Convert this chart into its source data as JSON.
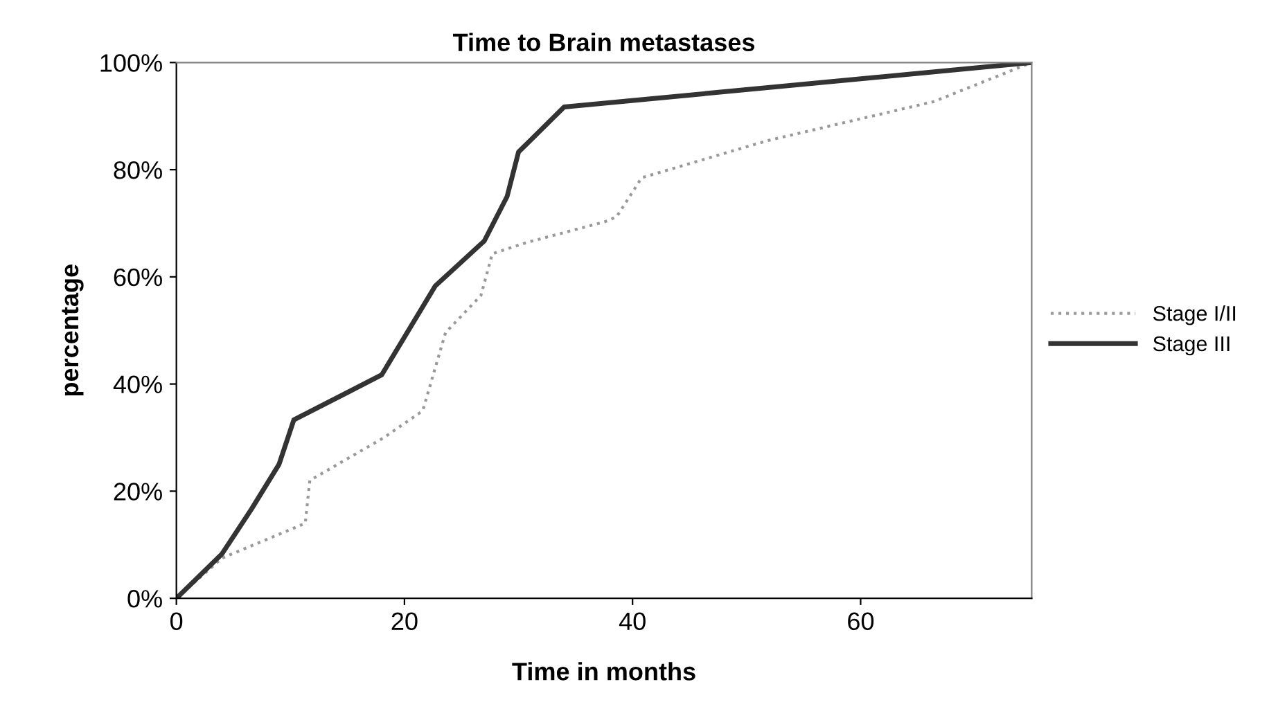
{
  "chart_data": {
    "type": "line",
    "title": "Time to Brain metastases",
    "xlabel": "Time in months",
    "ylabel": "percentage",
    "xlim": [
      0,
      75
    ],
    "xticks": [
      0,
      20,
      40,
      60
    ],
    "ylim": [
      0,
      100
    ],
    "yticks": [
      {
        "value": 0,
        "label": "0%"
      },
      {
        "value": 20,
        "label": "20%"
      },
      {
        "value": 40,
        "label": "40%"
      },
      {
        "value": 60,
        "label": "60%"
      },
      {
        "value": 80,
        "label": "80%"
      },
      {
        "value": 100,
        "label": "100%"
      }
    ],
    "grid": false,
    "legend": "right",
    "marker": "none",
    "series": [
      {
        "name": "Stage I/II",
        "color": "#999999",
        "line_style": "dotted",
        "x": [
          0,
          4,
          11.3,
          11.7,
          18.2,
          21.6,
          23.6,
          26.7,
          27.7,
          30.7,
          37.6,
          38.6,
          40.8,
          51.8,
          66.4,
          75
        ],
        "values": [
          0,
          7.5,
          14,
          22,
          30,
          35,
          49.6,
          56.5,
          64.3,
          66.4,
          70.3,
          71.2,
          78.5,
          85.4,
          92.7,
          100
        ]
      },
      {
        "name": "Stage III",
        "color": "#333333",
        "line_style": "solid",
        "x": [
          0,
          4,
          6.6,
          9,
          10.3,
          18,
          22.7,
          27,
          29,
          30,
          34,
          75
        ],
        "values": [
          0,
          8.3,
          16.7,
          25,
          33.3,
          41.7,
          58.3,
          66.7,
          75,
          83.3,
          91.7,
          100
        ]
      }
    ]
  }
}
